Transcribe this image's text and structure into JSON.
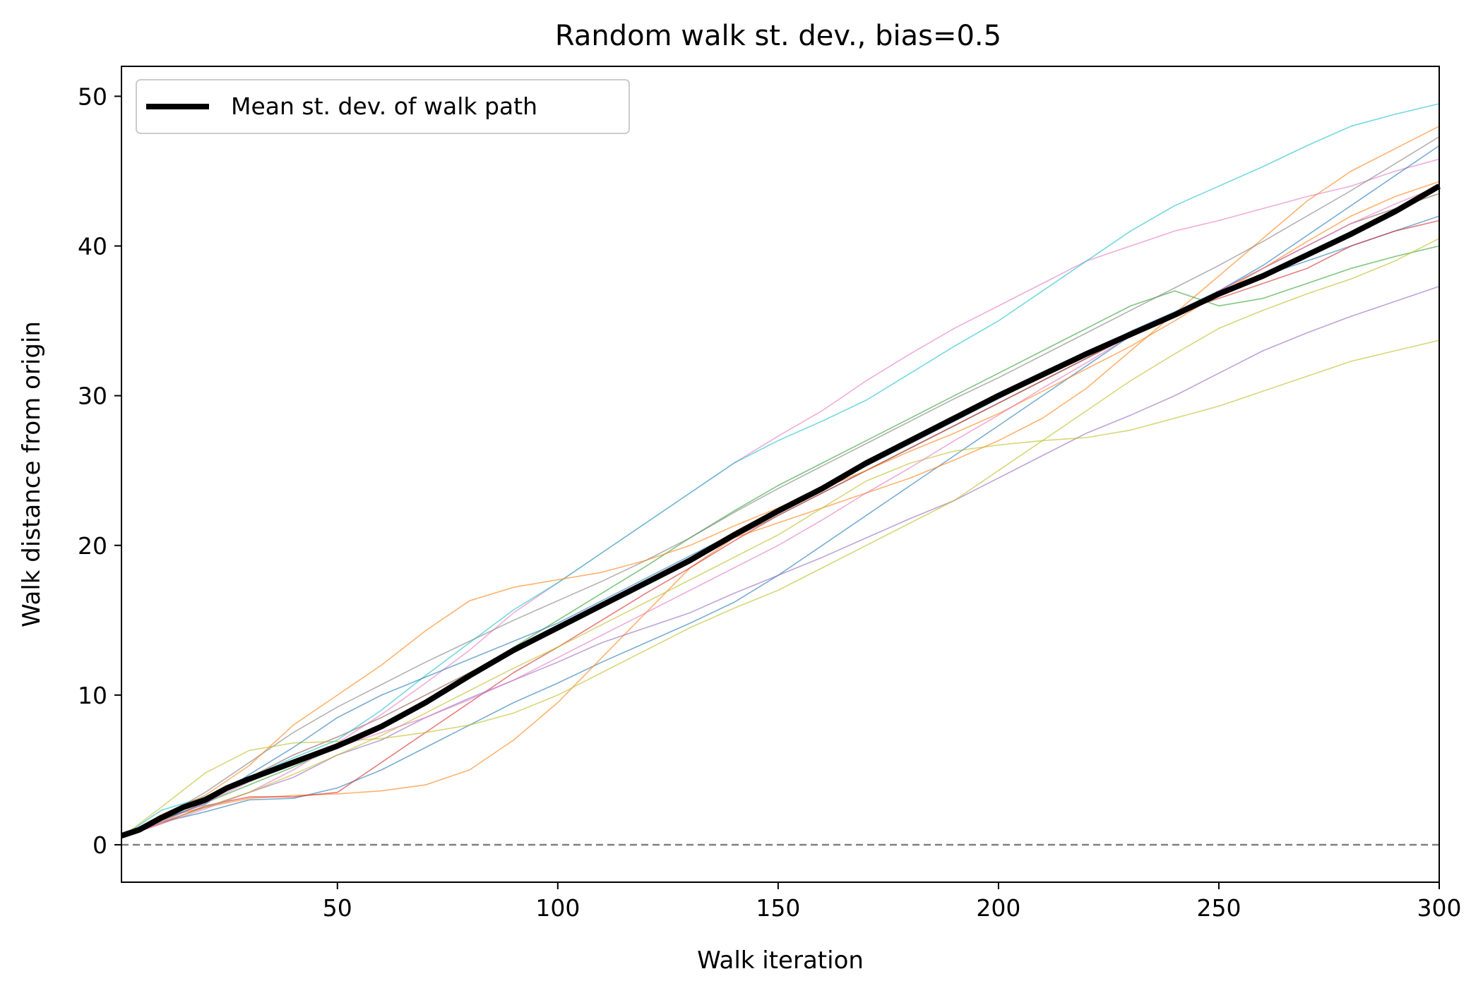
{
  "chart_data": {
    "type": "line",
    "title": "Random walk st. dev., bias=0.5",
    "xlabel": "Walk iteration",
    "ylabel": "Walk distance from origin",
    "xlim": [
      1,
      300
    ],
    "ylim": [
      -2.5,
      52
    ],
    "xticks": [
      50,
      100,
      150,
      200,
      250,
      300
    ],
    "yticks": [
      0,
      10,
      20,
      30,
      40,
      50
    ],
    "grid": false,
    "legend": {
      "placement": "upper-left",
      "entries": [
        "Mean st. dev. of walk path"
      ]
    },
    "reference_line": {
      "y": 0,
      "style": "dashed",
      "color": "#808080"
    },
    "mean_series": {
      "name": "Mean st. dev. of walk path",
      "color": "#000000",
      "x": [
        1,
        5,
        10,
        15,
        20,
        25,
        30,
        40,
        50,
        60,
        70,
        80,
        90,
        100,
        110,
        120,
        130,
        140,
        150,
        160,
        170,
        180,
        190,
        200,
        210,
        220,
        230,
        240,
        250,
        260,
        270,
        280,
        290,
        300
      ],
      "y": [
        0.6,
        1.0,
        1.8,
        2.5,
        3.0,
        3.8,
        4.4,
        5.5,
        6.6,
        7.9,
        9.5,
        11.3,
        13.0,
        14.5,
        16.0,
        17.5,
        19.0,
        20.7,
        22.3,
        23.8,
        25.5,
        27.0,
        28.5,
        30.0,
        31.4,
        32.8,
        34.1,
        35.4,
        36.8,
        38.0,
        39.4,
        40.8,
        42.3,
        44.0
      ]
    },
    "walk_x": [
      1,
      10,
      20,
      30,
      40,
      50,
      60,
      70,
      80,
      90,
      100,
      110,
      120,
      130,
      140,
      150,
      160,
      170,
      180,
      190,
      200,
      210,
      220,
      230,
      240,
      250,
      260,
      270,
      280,
      290,
      300
    ],
    "walks": [
      {
        "color": "#1f77b4",
        "y": [
          0.5,
          1.5,
          2.2,
          3.0,
          3.1,
          3.8,
          5.0,
          6.5,
          8.0,
          9.5,
          10.8,
          12.2,
          13.5,
          14.8,
          16.2,
          18.0,
          20.0,
          22.0,
          24.0,
          26.0,
          28.0,
          30.0,
          32.0,
          34.0,
          35.5,
          37.0,
          38.0,
          39.0,
          40.0,
          41.0,
          42.0
        ]
      },
      {
        "color": "#ff7f0e",
        "y": [
          0.5,
          1.8,
          2.5,
          3.1,
          3.3,
          3.4,
          3.6,
          4.0,
          5.0,
          7.0,
          9.5,
          12.5,
          15.5,
          18.5,
          20.5,
          21.5,
          22.5,
          23.5,
          24.5,
          25.7,
          27.0,
          28.5,
          30.5,
          33.0,
          35.5,
          38.0,
          40.5,
          43.0,
          45.0,
          46.5,
          48.0
        ]
      },
      {
        "color": "#2ca02c",
        "y": [
          0.5,
          1.6,
          2.8,
          4.0,
          5.2,
          6.5,
          8.0,
          9.6,
          11.3,
          13.2,
          15.0,
          16.8,
          18.6,
          20.5,
          22.3,
          24.0,
          25.5,
          27.0,
          28.5,
          30.0,
          31.5,
          33.0,
          34.5,
          36.0,
          37.0,
          36.0,
          36.5,
          37.5,
          38.5,
          39.3,
          40.0
        ]
      },
      {
        "color": "#d62728",
        "y": [
          0.5,
          1.4,
          2.6,
          3.2,
          3.2,
          3.5,
          5.5,
          7.5,
          9.5,
          11.5,
          13.2,
          15.0,
          16.8,
          18.5,
          20.3,
          22.0,
          23.5,
          25.0,
          26.5,
          28.0,
          29.5,
          31.0,
          32.5,
          34.0,
          35.5,
          36.5,
          37.5,
          38.5,
          40.0,
          41.0,
          41.7
        ]
      },
      {
        "color": "#9467bd",
        "y": [
          0.5,
          1.5,
          2.5,
          3.5,
          4.5,
          6.0,
          7.0,
          8.5,
          9.8,
          11.0,
          12.2,
          13.5,
          14.5,
          15.5,
          16.8,
          18.0,
          19.2,
          20.5,
          21.8,
          23.0,
          24.5,
          26.0,
          27.5,
          28.7,
          30.0,
          31.5,
          33.0,
          34.2,
          35.3,
          36.3,
          37.3
        ]
      },
      {
        "color": "#8c564b",
        "y": [
          0.5,
          1.6,
          2.8,
          4.5,
          6.0,
          7.2,
          8.5,
          10.0,
          11.5,
          13.0,
          14.5,
          16.0,
          17.5,
          19.0,
          20.5,
          22.0,
          23.5,
          25.0,
          26.5,
          28.0,
          29.5,
          31.0,
          32.5,
          34.0,
          35.5,
          37.0,
          38.5,
          40.0,
          41.5,
          42.5,
          43.5
        ]
      },
      {
        "color": "#e377c2",
        "y": [
          0.5,
          1.4,
          2.4,
          3.5,
          5.0,
          6.8,
          8.7,
          10.8,
          13.0,
          15.5,
          17.5,
          19.5,
          21.5,
          23.5,
          25.5,
          27.3,
          29.0,
          31.0,
          32.8,
          34.5,
          36.0,
          37.5,
          39.0,
          40.0,
          41.0,
          41.7,
          42.5,
          43.3,
          44.0,
          45.0,
          45.8
        ]
      },
      {
        "color": "#7f7f7f",
        "y": [
          0.5,
          1.8,
          3.5,
          5.5,
          7.5,
          9.2,
          10.7,
          12.2,
          13.6,
          15.0,
          16.3,
          17.6,
          19.0,
          20.5,
          22.2,
          23.8,
          25.3,
          26.8,
          28.3,
          29.8,
          31.2,
          32.7,
          34.2,
          35.7,
          37.2,
          38.7,
          40.3,
          42.0,
          43.7,
          45.5,
          47.3
        ]
      },
      {
        "color": "#bcbd22",
        "y": [
          0.5,
          2.5,
          4.8,
          6.3,
          6.8,
          6.9,
          7.1,
          7.5,
          8.0,
          8.8,
          10.0,
          11.5,
          13.0,
          14.5,
          15.8,
          17.0,
          18.5,
          20.0,
          21.5,
          23.0,
          25.0,
          27.0,
          29.0,
          31.0,
          32.8,
          34.5,
          35.7,
          36.8,
          37.8,
          39.0,
          40.5
        ]
      },
      {
        "color": "#17becf",
        "y": [
          0.5,
          2.3,
          3.2,
          4.5,
          5.8,
          7.0,
          9.0,
          11.3,
          13.5,
          15.7,
          17.5,
          19.5,
          21.5,
          23.5,
          25.5,
          27.0,
          28.3,
          29.7,
          31.5,
          33.3,
          35.0,
          37.0,
          39.0,
          41.0,
          42.7,
          44.0,
          45.3,
          46.7,
          48.0,
          48.8,
          49.5
        ]
      },
      {
        "color": "#1f77b4",
        "y": [
          0.5,
          1.7,
          2.7,
          4.7,
          6.5,
          8.5,
          10.0,
          11.2,
          12.4,
          13.6,
          14.8,
          16.3,
          17.8,
          19.3,
          20.8,
          22.3,
          23.8,
          25.3,
          26.8,
          28.3,
          29.8,
          31.3,
          32.8,
          34.3,
          35.6,
          37.0,
          38.7,
          40.7,
          42.7,
          44.7,
          46.7
        ]
      },
      {
        "color": "#ff7f0e",
        "y": [
          0.5,
          2.0,
          3.3,
          5.3,
          8.0,
          10.0,
          12.0,
          14.3,
          16.3,
          17.2,
          17.7,
          18.2,
          19.0,
          20.0,
          21.3,
          22.5,
          23.8,
          25.0,
          26.3,
          27.5,
          28.8,
          30.3,
          31.8,
          33.3,
          35.0,
          36.8,
          38.5,
          40.3,
          42.0,
          43.3,
          44.3
        ]
      },
      {
        "color": "#bcbd22",
        "y": [
          0.5,
          1.5,
          2.5,
          3.5,
          4.7,
          6.0,
          7.3,
          8.8,
          10.3,
          11.8,
          13.2,
          14.7,
          16.2,
          17.7,
          19.2,
          20.7,
          22.5,
          24.3,
          25.5,
          26.3,
          26.7,
          27.0,
          27.2,
          27.7,
          28.5,
          29.3,
          30.3,
          31.3,
          32.3,
          33.0,
          33.7
        ]
      },
      {
        "color": "#e377c2",
        "y": [
          0.5,
          1.5,
          2.8,
          4.2,
          5.5,
          6.5,
          7.5,
          8.5,
          9.7,
          11.0,
          12.5,
          14.0,
          15.5,
          17.0,
          18.5,
          20.0,
          21.7,
          23.5,
          25.2,
          27.0,
          28.7,
          30.5,
          32.2,
          34.0,
          35.5,
          37.0,
          38.5,
          40.0,
          41.5,
          42.8,
          44.0
        ]
      }
    ]
  }
}
